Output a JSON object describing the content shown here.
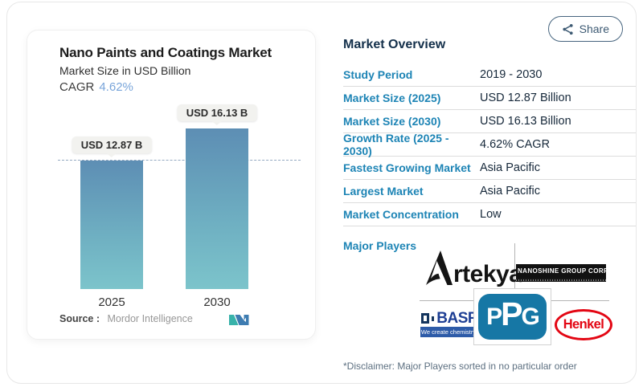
{
  "share": {
    "label": "Share"
  },
  "chart_panel": {
    "title": "Nano Paints and Coatings Market",
    "subtitle": "Market Size in USD Billion",
    "cagr_label": "CAGR",
    "cagr_value": "4.62%",
    "source_label": "Source :",
    "source_value": "Mordor Intelligence"
  },
  "chart_data": {
    "type": "bar",
    "categories": [
      "2025",
      "2030"
    ],
    "values": [
      12.87,
      16.13
    ],
    "value_labels": [
      "USD 12.87 B",
      "USD 16.13 B"
    ],
    "title": "Nano Paints and Coatings Market",
    "ylabel": "Market Size in USD Billion",
    "unit": "USD Billion",
    "cagr": "4.62%",
    "ylim": [
      0,
      16.13
    ],
    "grid": false,
    "reference_line": {
      "y": 12.87,
      "style": "dashed"
    },
    "bar_gradient": [
      "#5d8eb4",
      "#7cc4cb"
    ]
  },
  "overview": {
    "heading": "Market Overview",
    "rows": [
      {
        "label": "Study Period",
        "value": "2019 - 2030"
      },
      {
        "label": "Market Size (2025)",
        "value": "USD 12.87 Billion"
      },
      {
        "label": "Market Size (2030)",
        "value": "USD 16.13 Billion"
      },
      {
        "label": "Growth Rate (2025 - 2030)",
        "value": "4.62% CAGR"
      },
      {
        "label": "Fastest Growing Market",
        "value": "Asia Pacific"
      },
      {
        "label": "Largest Market",
        "value": "Asia Pacific"
      },
      {
        "label": "Market Concentration",
        "value": "Low"
      }
    ],
    "major_players_label": "Major Players"
  },
  "players": {
    "artekya_initial": "A",
    "artekya_rest": "rtekya",
    "nanoshine": "NANOSHINE GROUP CORP",
    "basf": "BASF",
    "basf_tagline": "We create chemistry",
    "ppg_letters": [
      "P",
      "P",
      "G"
    ],
    "henkel": "Henkel"
  },
  "disclaimer": "*Disclaimer: Major Players sorted in no particular order",
  "colors": {
    "row_label_blue": "#1d84b5",
    "value_navy": "#16283a",
    "cagr_blue": "#79a5da",
    "bar_top": "#5d8eb4",
    "bar_bottom": "#7cc4cb",
    "share_slate": "#3d5a73",
    "ppg_blue": "#1677a5",
    "basf_blue": "#1e3f94",
    "henkel_red": "#e30613",
    "mordor_teal": "#38b2aa",
    "mordor_blue": "#3e7cb1"
  }
}
